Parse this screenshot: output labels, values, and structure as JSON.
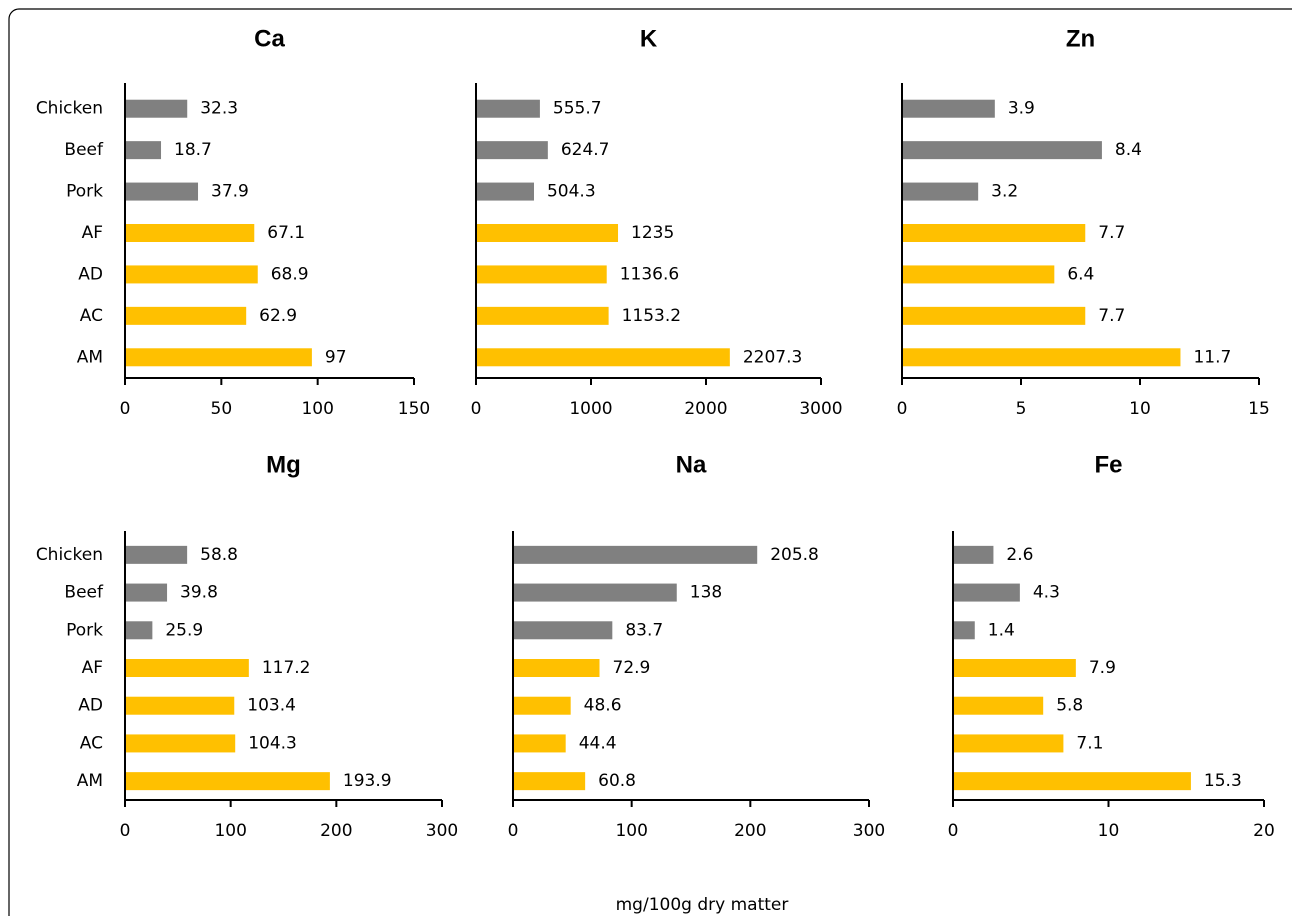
{
  "xlabel": "mg/100g dry matter",
  "chart_data": [
    {
      "type": "bar",
      "orientation": "horizontal",
      "title": "Ca",
      "categories": [
        "Chicken",
        "Beef",
        "Pork",
        "AF",
        "AD",
        "AC",
        "AM"
      ],
      "values": [
        32.3,
        18.7,
        37.9,
        67.1,
        68.9,
        62.9,
        97
      ],
      "colors": [
        "#808080",
        "#808080",
        "#808080",
        "#ffc000",
        "#ffc000",
        "#ffc000",
        "#ffc000"
      ],
      "xlim": [
        0,
        150
      ],
      "xticks": [
        0,
        50,
        100,
        150
      ]
    },
    {
      "type": "bar",
      "orientation": "horizontal",
      "title": "K",
      "categories": [
        null,
        null,
        null,
        null,
        null,
        null,
        null
      ],
      "values": [
        555.7,
        624.7,
        504.3,
        1235,
        1136.6,
        1153.2,
        2207.3
      ],
      "colors": [
        "#808080",
        "#808080",
        "#808080",
        "#ffc000",
        "#ffc000",
        "#ffc000",
        "#ffc000"
      ],
      "xlim": [
        0,
        3000
      ],
      "xticks": [
        0,
        1000,
        2000,
        3000
      ]
    },
    {
      "type": "bar",
      "orientation": "horizontal",
      "title": "Zn",
      "categories": [
        null,
        null,
        null,
        null,
        null,
        null,
        null
      ],
      "values": [
        3.9,
        8.4,
        3.2,
        7.7,
        6.4,
        7.7,
        11.7
      ],
      "colors": [
        "#808080",
        "#808080",
        "#808080",
        "#ffc000",
        "#ffc000",
        "#ffc000",
        "#ffc000"
      ],
      "xlim": [
        0,
        15
      ],
      "xticks": [
        0,
        5,
        10,
        15
      ]
    },
    {
      "type": "bar",
      "orientation": "horizontal",
      "title": "Mg",
      "categories": [
        "Chicken",
        "Beef",
        "Pork",
        "AF",
        "AD",
        "AC",
        "AM"
      ],
      "values": [
        58.8,
        39.8,
        25.9,
        117.2,
        103.4,
        104.3,
        193.9
      ],
      "colors": [
        "#808080",
        "#808080",
        "#808080",
        "#ffc000",
        "#ffc000",
        "#ffc000",
        "#ffc000"
      ],
      "xlim": [
        0,
        300
      ],
      "xticks": [
        0,
        100,
        200,
        300
      ]
    },
    {
      "type": "bar",
      "orientation": "horizontal",
      "title": "Na",
      "categories": [
        null,
        null,
        null,
        null,
        null,
        null,
        null
      ],
      "values": [
        205.8,
        138,
        83.7,
        72.9,
        48.6,
        44.4,
        60.8
      ],
      "colors": [
        "#808080",
        "#808080",
        "#808080",
        "#ffc000",
        "#ffc000",
        "#ffc000",
        "#ffc000"
      ],
      "xlim": [
        0,
        300
      ],
      "xticks": [
        0,
        100,
        200,
        300
      ]
    },
    {
      "type": "bar",
      "orientation": "horizontal",
      "title": "Fe",
      "categories": [
        null,
        null,
        null,
        null,
        null,
        null,
        null
      ],
      "values": [
        2.6,
        4.3,
        1.4,
        7.9,
        5.8,
        7.1,
        15.3
      ],
      "colors": [
        "#808080",
        "#808080",
        "#808080",
        "#ffc000",
        "#ffc000",
        "#ffc000",
        "#ffc000"
      ],
      "xlim": [
        0,
        20
      ],
      "xticks": [
        0,
        10,
        20
      ]
    }
  ]
}
